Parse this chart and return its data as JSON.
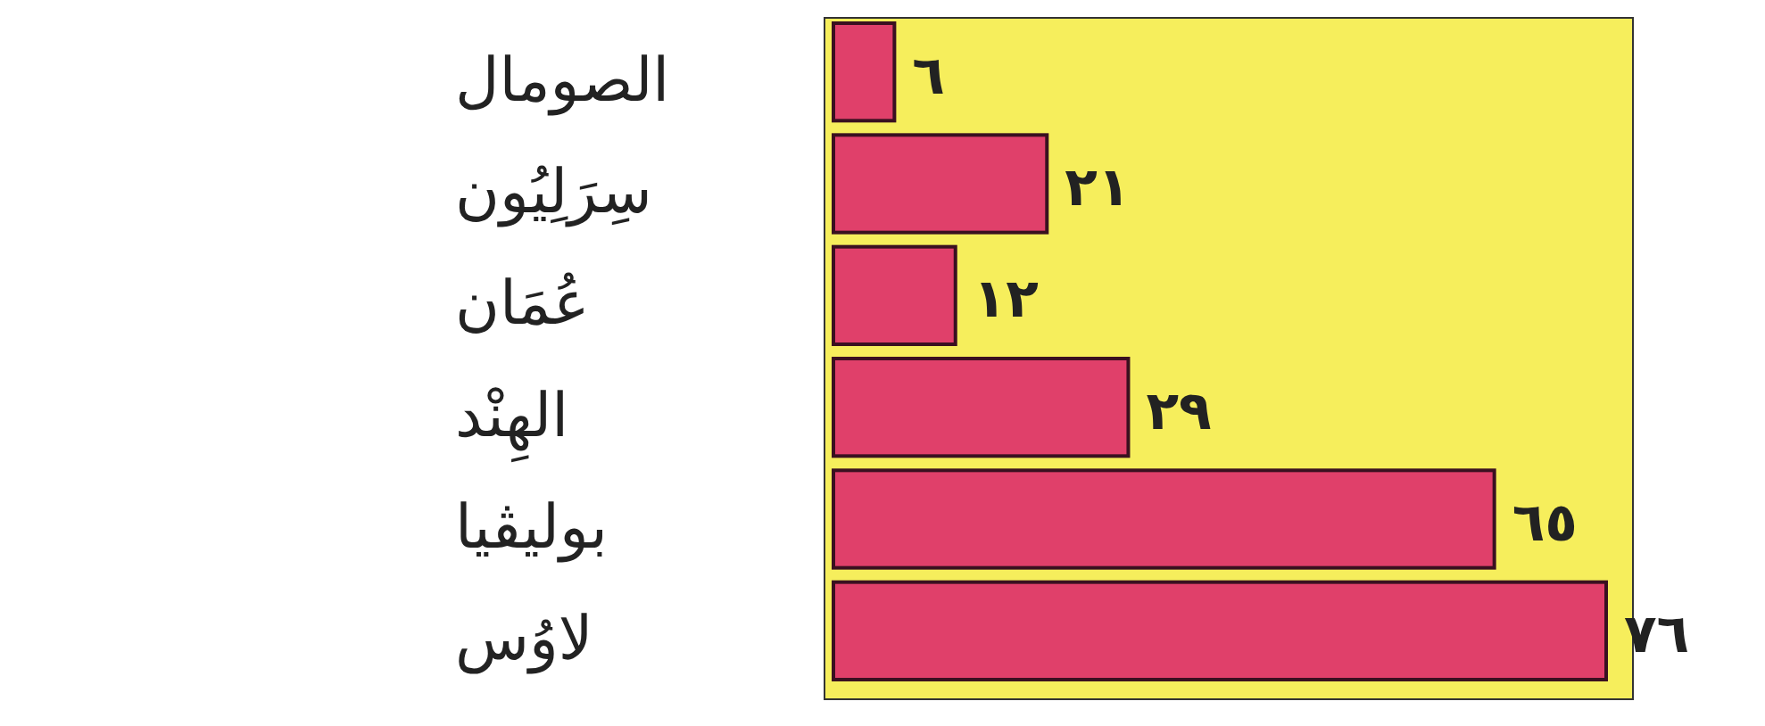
{
  "chart_data": {
    "type": "bar",
    "orientation": "horizontal",
    "categories": [
      "الصومال",
      "سِرَلِيُون",
      "عُمَان",
      "الهِنْد",
      "بوليڤيا",
      "لاوُس"
    ],
    "values": [
      6,
      21,
      12,
      29,
      65,
      76
    ],
    "value_labels": [
      "٦",
      "٢١",
      "١٢",
      "٢٩",
      "٦٥",
      "٧٦"
    ],
    "color": "#e0406a"
  }
}
